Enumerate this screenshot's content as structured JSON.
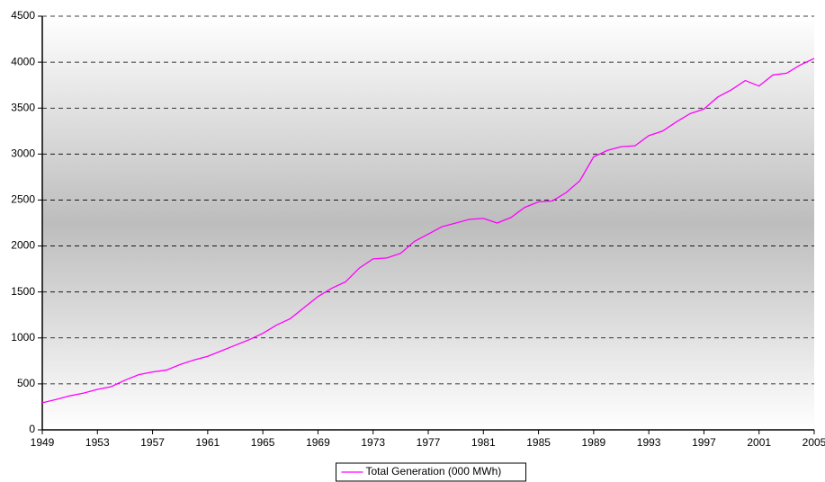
{
  "chart_data": {
    "type": "line",
    "x": [
      1949,
      1950,
      1951,
      1952,
      1953,
      1954,
      1955,
      1956,
      1957,
      1958,
      1959,
      1960,
      1961,
      1962,
      1963,
      1964,
      1965,
      1966,
      1967,
      1968,
      1969,
      1970,
      1971,
      1972,
      1973,
      1974,
      1975,
      1976,
      1977,
      1978,
      1979,
      1980,
      1981,
      1982,
      1983,
      1984,
      1985,
      1986,
      1987,
      1988,
      1989,
      1990,
      1991,
      1992,
      1993,
      1994,
      1995,
      1996,
      1997,
      1998,
      1999,
      2000,
      2001,
      2002,
      2003,
      2004,
      2005
    ],
    "series": [
      {
        "name": "Total Generation (000 MWh)",
        "color": "#ff00ff",
        "values": [
          295,
          330,
          370,
          400,
          440,
          470,
          540,
          600,
          630,
          650,
          710,
          760,
          800,
          860,
          920,
          980,
          1050,
          1140,
          1210,
          1330,
          1450,
          1540,
          1610,
          1760,
          1860,
          1870,
          1920,
          2050,
          2130,
          2210,
          2250,
          2290,
          2300,
          2250,
          2310,
          2420,
          2480,
          2490,
          2580,
          2710,
          2970,
          3040,
          3080,
          3090,
          3200,
          3250,
          3350,
          3440,
          3490,
          3620,
          3700,
          3800,
          3740,
          3860,
          3880,
          3970,
          4040
        ]
      }
    ],
    "xlim": [
      1949,
      2005
    ],
    "xticks": [
      1949,
      1953,
      1957,
      1961,
      1965,
      1969,
      1973,
      1977,
      1981,
      1985,
      1989,
      1993,
      1997,
      2001,
      2005
    ],
    "ylim": [
      0,
      4500
    ],
    "yticks": [
      0,
      500,
      1000,
      1500,
      2000,
      2500,
      3000,
      3500,
      4000,
      4500
    ],
    "grid": true,
    "legend": "bottom"
  }
}
